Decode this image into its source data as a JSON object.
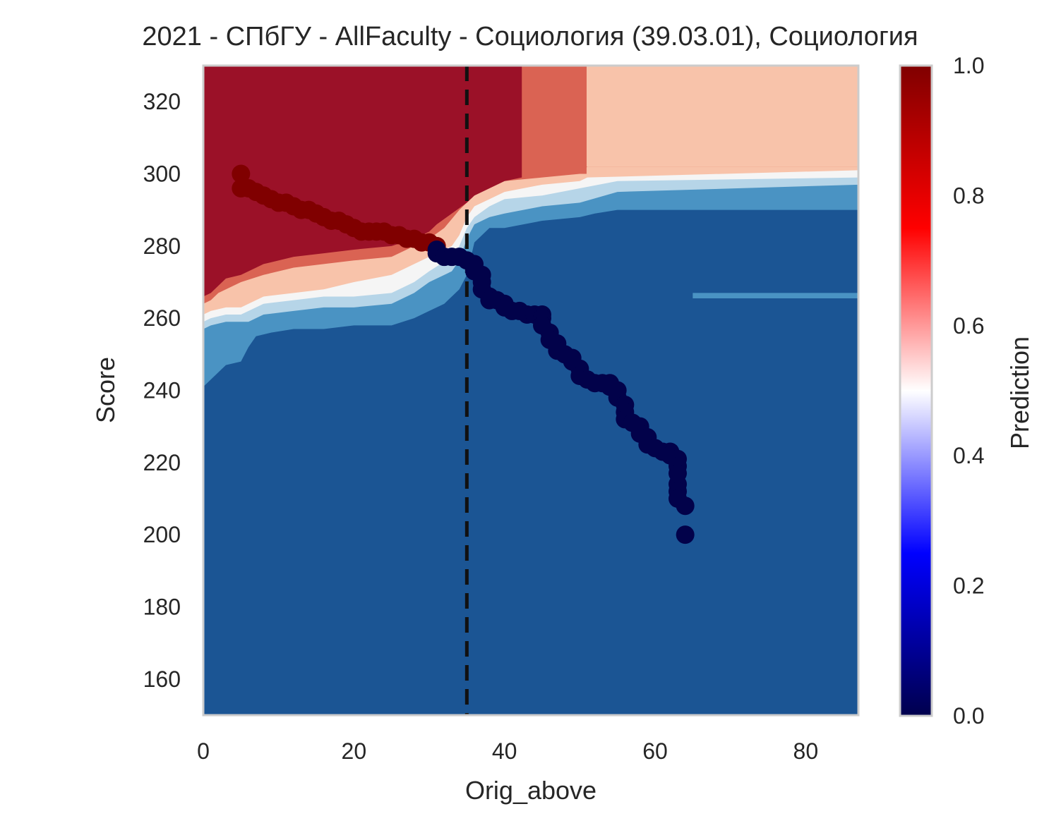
{
  "chart_data": {
    "type": "scatter",
    "title": "2021 - СПбГУ - AllFaculty - Социология (39.03.01), Социология",
    "xlabel": "Orig_above",
    "ylabel": "Score",
    "xlim": [
      0,
      87
    ],
    "ylim": [
      150,
      330
    ],
    "grid": false,
    "xticks": [
      0,
      20,
      40,
      60,
      80
    ],
    "yticks": [
      160,
      180,
      200,
      220,
      240,
      260,
      280,
      300,
      320
    ],
    "threshold_x": 35,
    "colorbar": {
      "label": "Prediction",
      "range": [
        0,
        1
      ],
      "ticks": [
        "0.0",
        "0.2",
        "0.4",
        "0.6",
        "0.8",
        "1.0"
      ],
      "colormap": "seismic"
    },
    "background_colors": {
      "very_high": "#9b1128",
      "high": "#da6353",
      "mid_high": "#f8c3aa",
      "neutral": "#f5f5f5",
      "mid_low": "#b6d5e8",
      "low": "#4a93c3",
      "very_low": "#1b5594"
    },
    "point_colors": {
      "admitted": "#800000",
      "not_admitted": "#02024a"
    },
    "series": [
      {
        "name": "",
        "prediction": 1,
        "points": [
          [
            5,
            300
          ],
          [
            5,
            296
          ],
          [
            6,
            296
          ],
          [
            7,
            295
          ],
          [
            8,
            294
          ],
          [
            9,
            293
          ],
          [
            10,
            292
          ],
          [
            11,
            292
          ],
          [
            12,
            291
          ],
          [
            13,
            290
          ],
          [
            14,
            290
          ],
          [
            15,
            289
          ],
          [
            16,
            288
          ],
          [
            17,
            287
          ],
          [
            18,
            287
          ],
          [
            19,
            286
          ],
          [
            20,
            285
          ],
          [
            21,
            284
          ],
          [
            22,
            284
          ],
          [
            23,
            284
          ],
          [
            24,
            284
          ],
          [
            25,
            283
          ],
          [
            26,
            283
          ],
          [
            27,
            282
          ],
          [
            28,
            282
          ],
          [
            29,
            281
          ],
          [
            30,
            281
          ],
          [
            31,
            280
          ]
        ]
      },
      {
        "name": "",
        "prediction": 0,
        "points": [
          [
            31,
            279
          ],
          [
            31,
            278
          ],
          [
            32,
            277
          ],
          [
            33,
            277
          ],
          [
            34,
            277
          ],
          [
            35,
            276
          ],
          [
            36,
            275
          ],
          [
            36,
            273
          ],
          [
            37,
            272
          ],
          [
            37,
            270
          ],
          [
            37,
            268
          ],
          [
            38,
            266
          ],
          [
            38,
            265
          ],
          [
            39,
            265
          ],
          [
            40,
            264
          ],
          [
            40,
            263
          ],
          [
            41,
            262
          ],
          [
            42,
            262
          ],
          [
            43,
            261
          ],
          [
            44,
            261
          ],
          [
            45,
            261
          ],
          [
            45,
            260
          ],
          [
            45,
            258
          ],
          [
            46,
            256
          ],
          [
            46,
            254
          ],
          [
            47,
            253
          ],
          [
            47,
            251
          ],
          [
            48,
            250
          ],
          [
            49,
            249
          ],
          [
            49,
            248
          ],
          [
            50,
            246
          ],
          [
            50,
            244
          ],
          [
            51,
            243
          ],
          [
            52,
            242
          ],
          [
            53,
            242
          ],
          [
            54,
            242
          ],
          [
            54,
            241
          ],
          [
            55,
            240
          ],
          [
            55,
            238
          ],
          [
            56,
            236
          ],
          [
            56,
            234
          ],
          [
            56,
            232
          ],
          [
            57,
            231
          ],
          [
            58,
            230
          ],
          [
            58,
            228
          ],
          [
            59,
            227
          ],
          [
            59,
            225
          ],
          [
            60,
            224
          ],
          [
            61,
            223
          ],
          [
            62,
            223
          ],
          [
            62,
            222
          ],
          [
            63,
            221
          ],
          [
            63,
            219
          ],
          [
            63,
            217
          ],
          [
            63,
            214
          ],
          [
            63,
            212
          ],
          [
            63,
            210
          ],
          [
            64,
            208
          ],
          [
            64,
            200
          ]
        ]
      }
    ]
  }
}
